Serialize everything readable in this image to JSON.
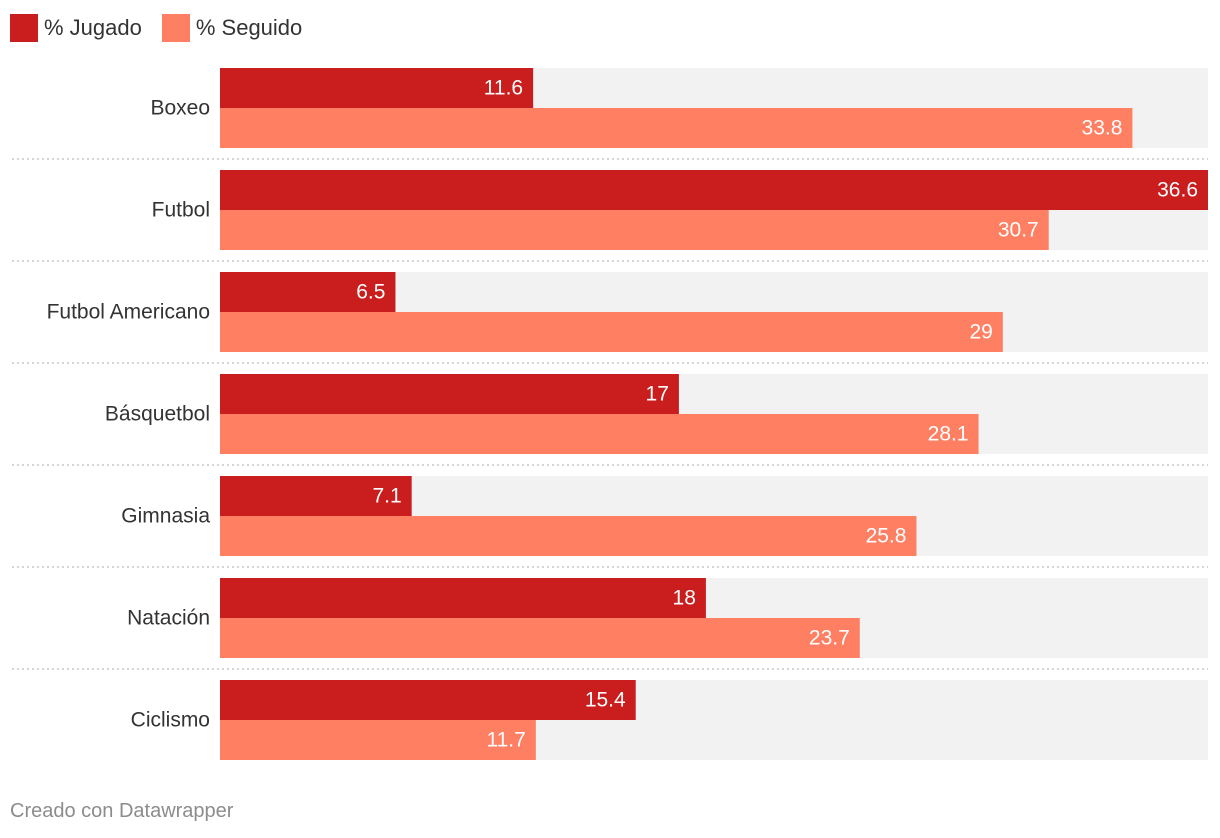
{
  "chart_data": {
    "type": "bar",
    "orientation": "horizontal",
    "categories": [
      "Boxeo",
      "Futbol",
      "Futbol Americano",
      "Básquetbol",
      "Gimnasia",
      "Natación",
      "Ciclismo"
    ],
    "series": [
      {
        "name": "% Jugado",
        "values": [
          11.6,
          36.6,
          6.5,
          17,
          7.1,
          18,
          15.4
        ],
        "color": "#c91d1e"
      },
      {
        "name": "% Seguido",
        "values": [
          33.8,
          30.7,
          29,
          28.1,
          25.8,
          23.7,
          11.7
        ],
        "color": "#ff7f63"
      }
    ],
    "xlim": [
      0,
      36.6
    ],
    "legend_position": "top-left",
    "track_color": "#f2f2f2",
    "separator": "dotted"
  },
  "footer": {
    "credit": "Creado con Datawrapper"
  }
}
